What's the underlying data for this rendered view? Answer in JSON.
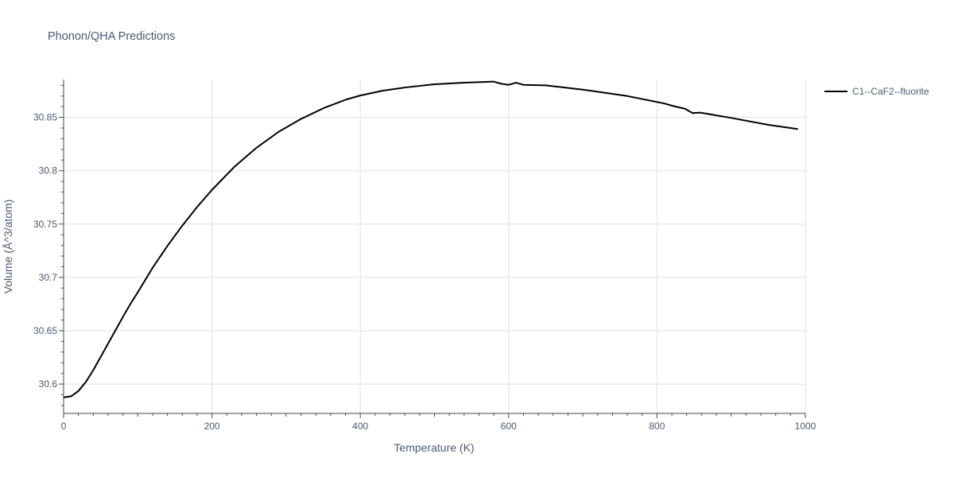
{
  "chart_data": {
    "type": "line",
    "title": "Phonon/QHA Predictions",
    "xlabel": "Temperature (K)",
    "ylabel": "Volume (Å^3/atom)",
    "xlim": [
      0,
      1000
    ],
    "ylim": [
      30.5725,
      30.8855
    ],
    "x_ticks": [
      0,
      200,
      400,
      600,
      800,
      1000
    ],
    "x_tick_labels": [
      "0",
      "200",
      "400",
      "600",
      "800",
      "1000"
    ],
    "y_ticks": [
      30.6,
      30.65,
      30.7,
      30.75,
      30.8,
      30.85
    ],
    "y_tick_labels": [
      "30.6",
      "30.65",
      "30.7",
      "30.75",
      "30.8",
      "30.85"
    ],
    "grid": true,
    "legend_position": "top-right-outside",
    "colors": {
      "series": "#000000",
      "grid": "#e1e1e1",
      "axis": "#444444",
      "text": "#4a5a70"
    },
    "series": [
      {
        "name": "C1--CaF2--fluorite",
        "x": [
          0,
          10,
          20,
          30,
          40,
          50,
          60,
          70,
          80,
          90,
          100,
          120,
          140,
          160,
          180,
          200,
          230,
          260,
          290,
          320,
          350,
          380,
          400,
          430,
          460,
          500,
          540,
          580,
          590,
          600,
          610,
          620,
          650,
          700,
          760,
          810,
          820,
          838,
          848,
          858,
          900,
          950,
          990
        ],
        "y": [
          30.5875,
          30.5885,
          30.5935,
          30.602,
          30.613,
          30.6255,
          30.638,
          30.6505,
          30.663,
          30.675,
          30.686,
          30.709,
          30.7295,
          30.7485,
          30.766,
          30.782,
          30.8035,
          30.8215,
          30.8365,
          30.8485,
          30.8585,
          30.8665,
          30.8705,
          30.875,
          30.878,
          30.881,
          30.8825,
          30.8835,
          30.8815,
          30.8805,
          30.8825,
          30.8805,
          30.88,
          30.876,
          30.87,
          30.863,
          30.861,
          30.858,
          30.854,
          30.8545,
          30.8495,
          30.843,
          30.839
        ]
      }
    ]
  }
}
